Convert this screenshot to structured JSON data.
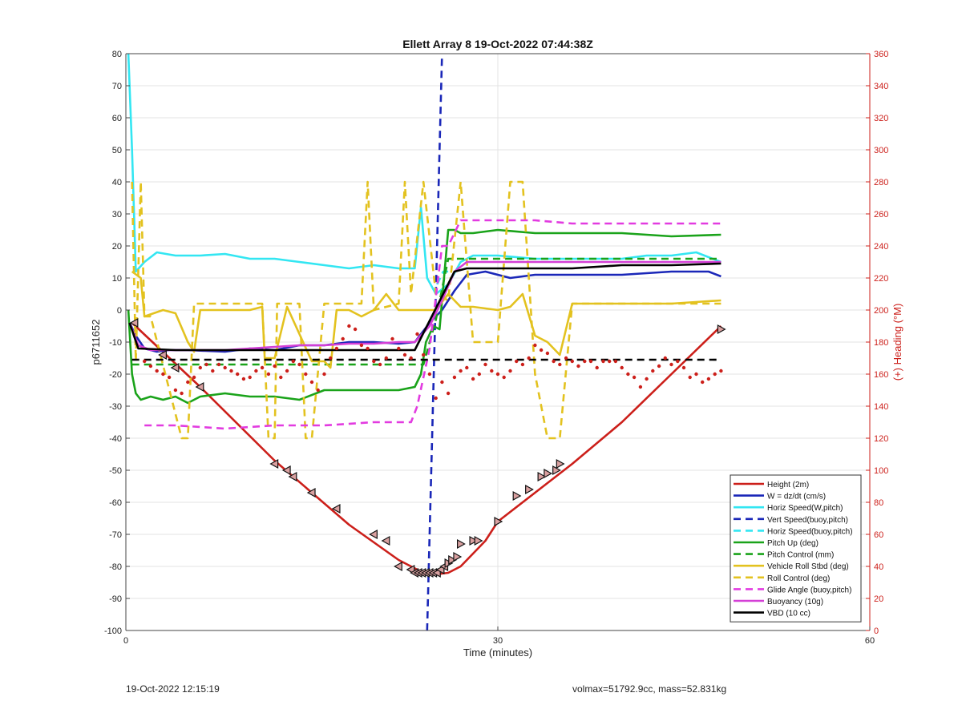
{
  "chart_data": {
    "type": "line",
    "title": "Ellett Array 8 19-Oct-2022 07:44:38Z",
    "xlabel": "Time (minutes)",
    "ylabel_left": "p6711652",
    "ylabel_right": "(+) Heading (°M)",
    "xlim": [
      0,
      60
    ],
    "ylim_left": [
      -100,
      80
    ],
    "ylim_right": [
      0,
      360
    ],
    "x_ticks": [
      "0",
      "30",
      "60"
    ],
    "y_left_ticks": [
      "-100",
      "-90",
      "-80",
      "-70",
      "-60",
      "-50",
      "-40",
      "-30",
      "-20",
      "-10",
      "0",
      "10",
      "20",
      "30",
      "40",
      "50",
      "60",
      "70",
      "80"
    ],
    "y_right_ticks": [
      "0",
      "20",
      "40",
      "60",
      "80",
      "100",
      "120",
      "140",
      "160",
      "180",
      "200",
      "220",
      "240",
      "260",
      "280",
      "300",
      "320",
      "340",
      "360"
    ],
    "grid": true,
    "legend_position": "bottom-right",
    "colors": {
      "height": "#cc1f1a",
      "w": "#1a27b8",
      "horiz": "#33e6f2",
      "vert_buoy": "#1a27b8",
      "horiz_buoy": "#33e6f2",
      "pitch": "#1aa31a",
      "pitch_ctrl": "#1aa31a",
      "roll": "#e3c21f",
      "roll_ctrl": "#e3c21f",
      "glide": "#e23be0",
      "buoy": "#d43fd6",
      "vbd": "#000000",
      "heading": "#cc1f1a",
      "right_axis": "#cc1f1a"
    },
    "series": [
      {
        "key": "height",
        "name": "Height (2m)",
        "style": "solid",
        "axis": "left",
        "x": [
          0.5,
          6,
          12,
          18,
          22,
          24,
          25,
          26,
          27,
          28,
          29,
          30,
          33,
          36,
          40,
          44,
          48
        ],
        "y": [
          -4,
          -24,
          -47,
          -67,
          -78,
          -82,
          -82.5,
          -82,
          -80,
          -76,
          -72,
          -66,
          -57,
          -48,
          -35,
          -20,
          -5
        ]
      },
      {
        "key": "w",
        "name": "W = dz/dt (cm/s)",
        "style": "solid",
        "axis": "left",
        "x": [
          0.3,
          0.8,
          1.5,
          2.5,
          3.5,
          5,
          8,
          10,
          12,
          14,
          16,
          18,
          20,
          22,
          23.3,
          24.5,
          25.5,
          26.5,
          27.5,
          29,
          31,
          33,
          36,
          40,
          44,
          47,
          48
        ],
        "y": [
          -4,
          -8,
          -12,
          -13,
          -12.5,
          -12.5,
          -13,
          -12,
          -12.5,
          -11,
          -11,
          -10,
          -10,
          -10.5,
          -10,
          -4,
          0,
          6,
          11,
          12,
          10,
          11,
          11,
          11,
          12,
          12,
          10.5
        ]
      },
      {
        "key": "horiz",
        "name": "Horiz Speed(W,pitch)",
        "style": "solid",
        "axis": "left",
        "x": [
          0.2,
          0.5,
          0.8,
          1.5,
          2.5,
          4,
          6,
          8,
          10,
          12,
          14,
          16,
          18,
          20,
          22,
          23.3,
          23.8,
          24.3,
          25,
          26,
          27,
          28,
          30,
          33,
          36,
          40,
          42,
          44,
          46,
          48
        ],
        "y": [
          80,
          50,
          12,
          15,
          18,
          17,
          17,
          17.5,
          16,
          16,
          15,
          14,
          13,
          14,
          13,
          13,
          32,
          10,
          5,
          8,
          15,
          17,
          17,
          16,
          16,
          16,
          17,
          17,
          18,
          15
        ]
      },
      {
        "key": "vert_buoy",
        "name": "Vert Speed(buoy,pitch)",
        "style": "dashed",
        "axis": "left",
        "x": [
          24.3,
          24.7,
          25.1,
          25.5
        ],
        "y": [
          -100,
          -40,
          20,
          80
        ]
      },
      {
        "key": "horiz_buoy",
        "name": "Horiz Speed(buoy,pitch)",
        "style": "dashed",
        "axis": "left",
        "x": [
          25.1,
          25.6,
          26
        ],
        "y": [
          8,
          12,
          12
        ]
      },
      {
        "key": "pitch",
        "name": "Pitch Up (deg)",
        "style": "solid",
        "axis": "left",
        "x": [
          0.2,
          0.5,
          0.8,
          1.2,
          2,
          3,
          4,
          5,
          6,
          8,
          10,
          12,
          14,
          16,
          18,
          20,
          22,
          23.3,
          23.8,
          24.2,
          24.8,
          25.3,
          26,
          26.5,
          27,
          28,
          30,
          33,
          36,
          40,
          44,
          48
        ],
        "y": [
          0,
          -20,
          -26,
          -28,
          -27,
          -28,
          -27,
          -29,
          -27,
          -26,
          -27,
          -27,
          -28,
          -25,
          -25,
          -25,
          -25,
          -24,
          -20,
          -10,
          -5,
          -6,
          25,
          25,
          24,
          24,
          25,
          24,
          24,
          24,
          23,
          23.5
        ]
      },
      {
        "key": "pitch_ctrl",
        "name": "Pitch Control (mm)",
        "style": "dashed",
        "axis": "left",
        "x": [
          0.5,
          23,
          24,
          25,
          26,
          48
        ],
        "y": [
          -17,
          -17,
          -17,
          -3,
          16,
          16
        ]
      },
      {
        "key": "roll",
        "name": "Vehicle Roll Stbd (deg)",
        "style": "solid",
        "axis": "left",
        "x": [
          0.5,
          1.2,
          1.5,
          3,
          4,
          5,
          5.5,
          6,
          10,
          11,
          11.2,
          12,
          13,
          15,
          16,
          16.5,
          17,
          18,
          19,
          20,
          21,
          22,
          23,
          24,
          25,
          26,
          27,
          28,
          30,
          31,
          32,
          33,
          34,
          35,
          36,
          38,
          40,
          44,
          48
        ],
        "y": [
          12,
          10,
          -2,
          0,
          -1,
          -10,
          -13,
          0,
          0,
          1,
          -15,
          -15,
          1,
          -16,
          -16,
          -18,
          0,
          0,
          -2,
          0,
          5,
          0,
          0,
          0,
          0,
          5,
          1,
          1,
          0,
          1,
          5,
          -8,
          -10,
          -14,
          2,
          2,
          2,
          2,
          3
        ]
      },
      {
        "key": "roll_ctrl",
        "name": "Roll Control (deg)",
        "style": "dashed",
        "axis": "left",
        "x": [
          0.5,
          0.8,
          1.2,
          1.5,
          2,
          4.5,
          5,
          5.5,
          6,
          11,
          11.5,
          12,
          12.2,
          14,
          14.5,
          15,
          16,
          18,
          19,
          19.5,
          20,
          22,
          22.5,
          23,
          24,
          25,
          26,
          27,
          28,
          30,
          31,
          32,
          33,
          34,
          35,
          36,
          48
        ],
        "y": [
          40,
          -16,
          40,
          -2,
          -2,
          -40,
          -40,
          2,
          2,
          2,
          -40,
          -40,
          2,
          2,
          -40,
          -40,
          2,
          2,
          2,
          40,
          0,
          2,
          40,
          5,
          40,
          5,
          3,
          40,
          -10,
          -10,
          40,
          40,
          -20,
          -40,
          -40,
          2,
          2
        ]
      },
      {
        "key": "glide",
        "name": "Glide Angle (buoy,pitch)",
        "style": "dashed",
        "axis": "left",
        "x": [
          1.5,
          4,
          8,
          12,
          16,
          20,
          23,
          23.5,
          24.5,
          25.5,
          26,
          27,
          28,
          30,
          33,
          36,
          40,
          44,
          48
        ],
        "y": [
          -36,
          -36,
          -37,
          -36,
          -36,
          -35,
          -35,
          -30,
          -12,
          20,
          20,
          28,
          28,
          28,
          28,
          27,
          27,
          27,
          27
        ]
      },
      {
        "key": "buoy",
        "name": "Buoyancy (10g)",
        "style": "solid",
        "axis": "left",
        "x": [
          0.3,
          1,
          2,
          4,
          6,
          8,
          10,
          12,
          14,
          16,
          18,
          20,
          22,
          23.3,
          24.5,
          25.5,
          26.5,
          27.5,
          30,
          33,
          36,
          40,
          44,
          48
        ],
        "y": [
          -4,
          -11,
          -12.5,
          -12.5,
          -12.5,
          -12.5,
          -12,
          -11.5,
          -11,
          -11,
          -10.5,
          -10.5,
          -10,
          -10,
          -5,
          3,
          12,
          15,
          15,
          15,
          15,
          15,
          15,
          15
        ]
      },
      {
        "key": "vbd",
        "name": "VBD (10 cc)",
        "style": "solid",
        "axis": "left",
        "x": [
          0.3,
          1,
          4,
          8,
          12,
          16,
          20,
          23.3,
          26.5,
          27.5,
          30,
          33,
          36,
          40,
          44,
          48
        ],
        "y": [
          -4,
          -12,
          -12.5,
          -12.5,
          -12.5,
          -12.5,
          -12.5,
          -12.5,
          12,
          13,
          13,
          13,
          13,
          14,
          14,
          14.5
        ]
      },
      {
        "key": "heading_ref",
        "name": "",
        "style": "dashed",
        "axis": "right",
        "x": [
          0.5,
          48
        ],
        "y": [
          169,
          169
        ]
      }
    ],
    "heading_points": {
      "x": [
        1.5,
        2,
        2.5,
        3,
        3.5,
        4,
        4.5,
        5,
        5.5,
        6,
        6.5,
        7,
        7.5,
        8,
        8.5,
        9,
        9.5,
        10,
        10.5,
        11,
        11.5,
        12,
        12.5,
        13,
        13.5,
        14,
        14.5,
        15,
        15.5,
        16,
        16.5,
        17,
        17.5,
        18,
        18.5,
        19,
        19.5,
        20,
        20.5,
        21,
        21.5,
        22,
        22.5,
        23,
        23.5,
        24,
        24.5,
        25,
        25.5,
        26,
        26.5,
        27,
        27.5,
        28,
        28.5,
        29,
        29.5,
        30,
        30.5,
        31,
        31.5,
        32,
        32.5,
        33,
        33.5,
        34,
        34.5,
        35,
        35.5,
        36,
        36.5,
        37,
        37.5,
        38,
        38.5,
        39,
        39.5,
        40,
        40.5,
        41,
        41.5,
        42,
        42.5,
        43,
        43.5,
        44,
        44.5,
        45,
        45.5,
        46,
        46.5,
        47,
        47.5,
        48
      ],
      "y": [
        168,
        165,
        162,
        160,
        158,
        150,
        148,
        155,
        158,
        164,
        166,
        162,
        166,
        164,
        162,
        160,
        157,
        158,
        162,
        164,
        160,
        165,
        158,
        162,
        168,
        166,
        160,
        155,
        150,
        160,
        170,
        176,
        182,
        190,
        188,
        178,
        176,
        168,
        166,
        170,
        182,
        176,
        172,
        170,
        185,
        172,
        160,
        145,
        155,
        148,
        158,
        162,
        164,
        157,
        160,
        166,
        162,
        160,
        158,
        162,
        168,
        166,
        170,
        178,
        175,
        173,
        168,
        166,
        170,
        168,
        165,
        168,
        168,
        164,
        168,
        168,
        168,
        164,
        160,
        158,
        152,
        157,
        162,
        165,
        170,
        166,
        168,
        164,
        158,
        160,
        155,
        157,
        160,
        162
      ]
    },
    "height_markers": {
      "x": [
        0.7,
        3,
        4,
        6,
        12,
        13,
        13.5,
        15,
        17,
        20,
        21,
        22,
        23,
        23.3,
        23.6,
        23.9,
        24.2,
        24.5,
        24.8,
        25.1,
        25.4,
        25.7,
        26,
        26.3,
        26.7,
        27,
        28,
        28.4,
        30,
        31.5,
        32.5,
        33.5,
        34,
        34.7,
        35,
        48
      ],
      "y": [
        -4,
        -14,
        -18,
        -24,
        -48,
        -50,
        -52,
        -57,
        -62,
        -70,
        -72,
        -80,
        -81,
        -82,
        -82,
        -82,
        -82,
        -82,
        -82,
        -82,
        -81,
        -80,
        -79,
        -78,
        -77,
        -73,
        -72,
        -72,
        -66,
        -58,
        -56,
        -52,
        -51,
        -50,
        -48,
        -6
      ]
    }
  },
  "footer": {
    "left": "19-Oct-2022 12:15:19",
    "right": "volmax=51792.9cc, mass=52.831kg"
  }
}
